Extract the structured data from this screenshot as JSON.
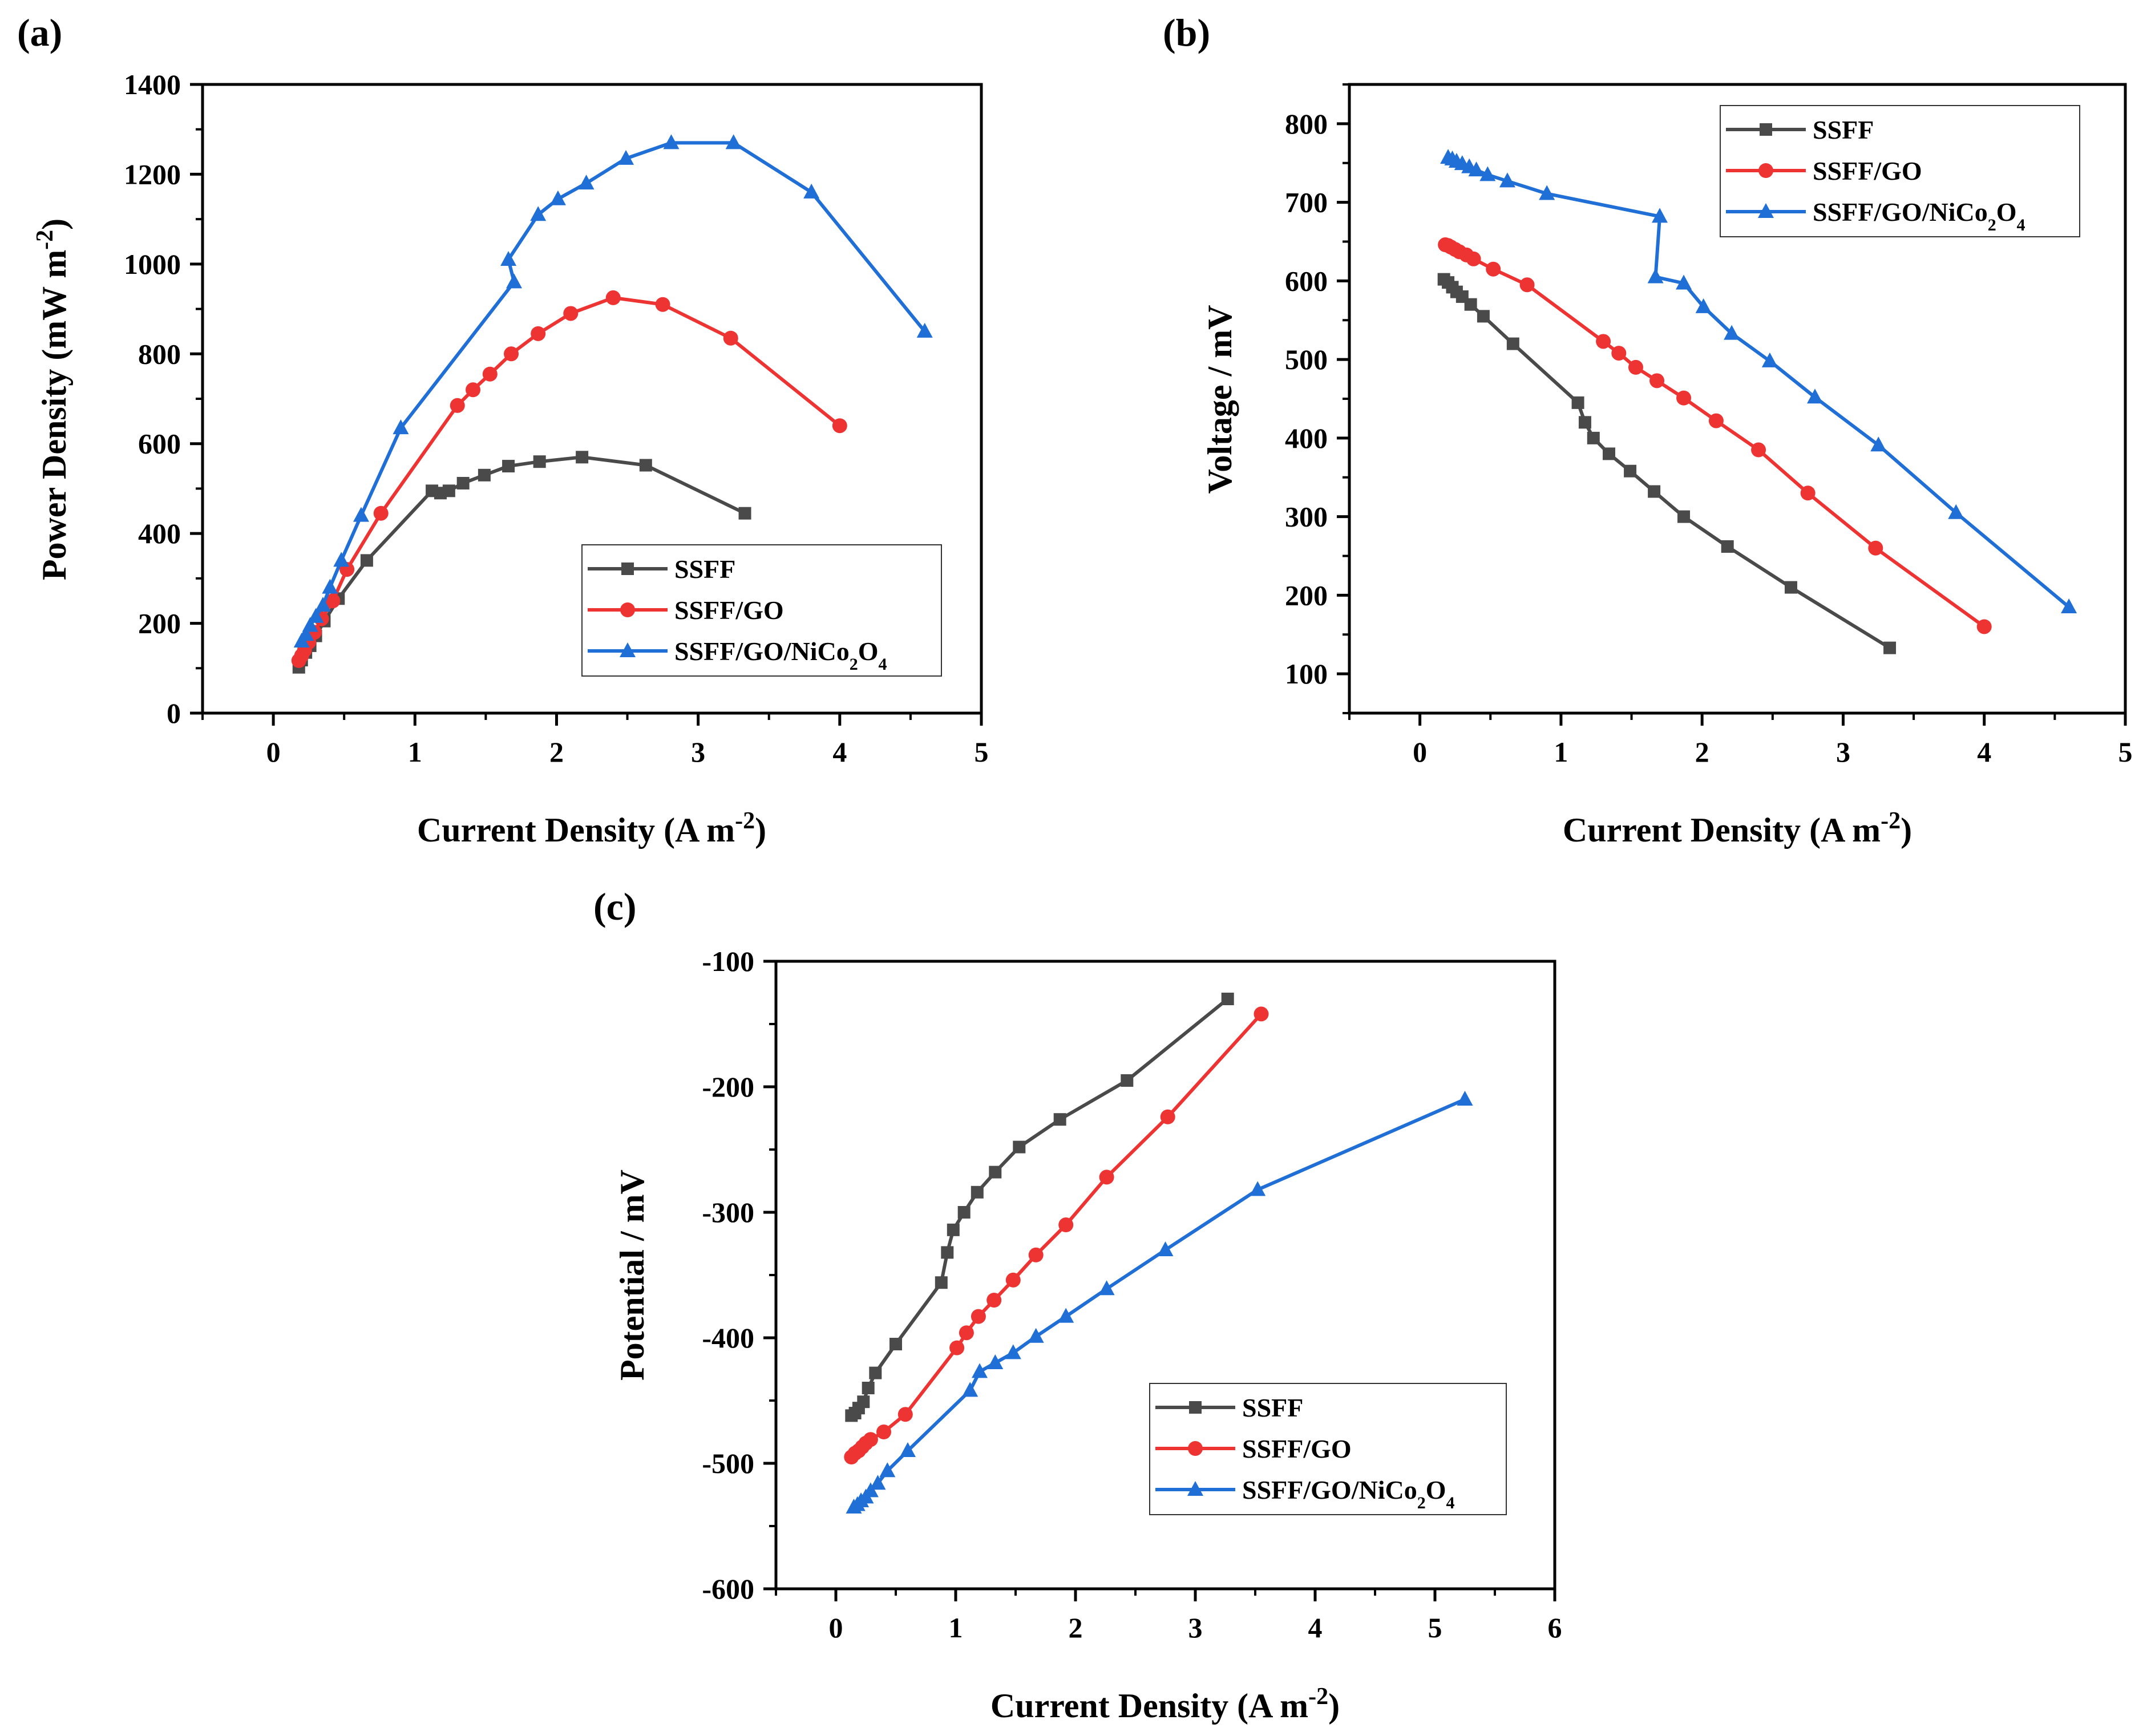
{
  "figure": {
    "panels": [
      "a",
      "b",
      "c"
    ]
  },
  "colors": {
    "SSFF": "#4a4a4a",
    "SSFF/GO": "#ee3333",
    "SSFF/GO/NiCo2O4": "#1f6fd6"
  },
  "chart_data": [
    {
      "id": "a",
      "panel_label": "(a)",
      "type": "line",
      "xlabel": "Current Density (A m",
      "xlabel_sup": "-2",
      "xlabel_end": ")",
      "ylabel": "Power Density (mW m",
      "ylabel_sup": "-2",
      "ylabel_end": ")",
      "xlim": [
        -0.5,
        5
      ],
      "ylim": [
        0,
        1400
      ],
      "xticks": [
        0,
        1,
        2,
        3,
        4,
        5
      ],
      "yticks": [
        0,
        200,
        400,
        600,
        800,
        1000,
        1200,
        1400
      ],
      "legend_position": "bottom-right",
      "series": [
        {
          "name": "SSFF",
          "marker": "square",
          "color": "#4a4a4a",
          "x": [
            0.18,
            0.2,
            0.23,
            0.26,
            0.3,
            0.36,
            0.46,
            0.66,
            1.12,
            1.18,
            1.24,
            1.34,
            1.49,
            1.66,
            1.88,
            2.18,
            2.63,
            3.33
          ],
          "y": [
            102,
            118,
            135,
            150,
            172,
            205,
            255,
            340,
            495,
            490,
            495,
            512,
            530,
            550,
            560,
            570,
            552,
            445
          ]
        },
        {
          "name": "SSFF/GO",
          "marker": "circle",
          "color": "#ee3333",
          "x": [
            0.18,
            0.2,
            0.22,
            0.25,
            0.29,
            0.34,
            0.42,
            0.52,
            0.76,
            1.3,
            1.41,
            1.53,
            1.68,
            1.87,
            2.1,
            2.4,
            2.75,
            3.23,
            4.0
          ],
          "y": [
            117,
            128,
            140,
            158,
            180,
            210,
            250,
            320,
            445,
            685,
            720,
            755,
            800,
            845,
            890,
            925,
            910,
            835,
            640
          ]
        },
        {
          "name": "SSFF/GO/NiCo",
          "name_sub": "2",
          "name_mid": "O",
          "name_sub2": "4",
          "marker": "triangle",
          "color": "#1f6fd6",
          "x": [
            0.2,
            0.23,
            0.26,
            0.3,
            0.35,
            0.4,
            0.48,
            0.62,
            0.9,
            1.7,
            1.66,
            1.87,
            2.01,
            2.21,
            2.49,
            2.81,
            3.25,
            3.8,
            4.6
          ],
          "y": [
            160,
            175,
            195,
            215,
            240,
            280,
            340,
            440,
            635,
            960,
            1010,
            1110,
            1145,
            1180,
            1235,
            1270,
            1270,
            1160,
            850
          ]
        }
      ]
    },
    {
      "id": "b",
      "panel_label": "(b)",
      "type": "line",
      "xlabel": "Current Density (A m",
      "xlabel_sup": "-2",
      "xlabel_end": ")",
      "ylabel": "Voltage / mV",
      "xlim": [
        -0.5,
        5
      ],
      "ylim": [
        50,
        850
      ],
      "xticks": [
        0,
        1,
        2,
        3,
        4,
        5
      ],
      "yticks": [
        100,
        200,
        300,
        400,
        500,
        600,
        700,
        800
      ],
      "legend_position": "top-right",
      "series": [
        {
          "name": "SSFF",
          "marker": "square",
          "color": "#4a4a4a",
          "x": [
            0.17,
            0.2,
            0.23,
            0.26,
            0.3,
            0.36,
            0.45,
            0.66,
            1.12,
            1.17,
            1.23,
            1.34,
            1.49,
            1.66,
            1.87,
            2.18,
            2.63,
            3.33
          ],
          "y": [
            602,
            598,
            592,
            586,
            580,
            570,
            555,
            520,
            445,
            420,
            400,
            380,
            358,
            332,
            300,
            262,
            210,
            133
          ]
        },
        {
          "name": "SSFF/GO",
          "marker": "circle",
          "color": "#ee3333",
          "x": [
            0.18,
            0.2,
            0.22,
            0.25,
            0.28,
            0.33,
            0.38,
            0.52,
            0.76,
            1.3,
            1.41,
            1.53,
            1.68,
            1.87,
            2.1,
            2.4,
            2.75,
            3.23,
            4.0
          ],
          "y": [
            646,
            645,
            643,
            640,
            637,
            633,
            628,
            615,
            595,
            523,
            508,
            490,
            473,
            451,
            422,
            385,
            330,
            260,
            160
          ]
        },
        {
          "name": "SSFF/GO/NiCo",
          "name_sub": "2",
          "name_mid": "O",
          "name_sub2": "4",
          "marker": "triangle",
          "color": "#1f6fd6",
          "x": [
            0.2,
            0.23,
            0.26,
            0.3,
            0.35,
            0.4,
            0.48,
            0.62,
            0.9,
            1.7,
            1.67,
            1.87,
            2.01,
            2.21,
            2.48,
            2.8,
            3.25,
            3.8,
            4.6
          ],
          "y": [
            757,
            755,
            752,
            749,
            745,
            741,
            735,
            727,
            711,
            682,
            605,
            597,
            567,
            533,
            498,
            452,
            391,
            305,
            185
          ]
        }
      ]
    },
    {
      "id": "c",
      "panel_label": "(c)",
      "type": "line",
      "xlabel": "Current Density (A m",
      "xlabel_sup": "-2",
      "xlabel_end": ")",
      "ylabel": "Potential / mV",
      "xlim": [
        -0.5,
        6
      ],
      "ylim": [
        -600,
        -100
      ],
      "xticks": [
        0,
        1,
        2,
        3,
        4,
        5,
        6
      ],
      "yticks": [
        -100,
        -200,
        -300,
        -400,
        -500,
        -600
      ],
      "legend_position": "bottom-right",
      "series": [
        {
          "name": "SSFF",
          "marker": "square",
          "color": "#4a4a4a",
          "x": [
            0.13,
            0.16,
            0.19,
            0.23,
            0.27,
            0.33,
            0.5,
            0.88,
            0.93,
            0.98,
            1.07,
            1.18,
            1.33,
            1.53,
            1.87,
            2.43,
            3.27
          ],
          "y": [
            -462,
            -460,
            -456,
            -451,
            -440,
            -428,
            -405,
            -356,
            -332,
            -314,
            -300,
            -284,
            -268,
            -248,
            -226,
            -195,
            -130
          ]
        },
        {
          "name": "SSFF/GO",
          "marker": "circle",
          "color": "#ee3333",
          "x": [
            0.13,
            0.16,
            0.19,
            0.22,
            0.25,
            0.29,
            0.4,
            0.58,
            1.01,
            1.09,
            1.19,
            1.32,
            1.48,
            1.67,
            1.92,
            2.26,
            2.77,
            3.55
          ],
          "y": [
            -495,
            -492,
            -490,
            -487,
            -484,
            -481,
            -475,
            -461,
            -408,
            -396,
            -383,
            -370,
            -354,
            -334,
            -310,
            -272,
            -224,
            -142
          ]
        },
        {
          "name": "SSFF/GO/NiCo",
          "name_sub": "2",
          "name_mid": "O",
          "name_sub2": "4",
          "marker": "triangle",
          "color": "#1f6fd6",
          "x": [
            0.15,
            0.18,
            0.21,
            0.25,
            0.29,
            0.35,
            0.43,
            0.6,
            1.12,
            1.2,
            1.33,
            1.48,
            1.67,
            1.92,
            2.26,
            2.75,
            3.52,
            5.25
          ],
          "y": [
            -535,
            -533,
            -530,
            -527,
            -522,
            -516,
            -506,
            -490,
            -442,
            -427,
            -420,
            -412,
            -399,
            -383,
            -361,
            -330,
            -282,
            -210
          ]
        }
      ]
    }
  ]
}
